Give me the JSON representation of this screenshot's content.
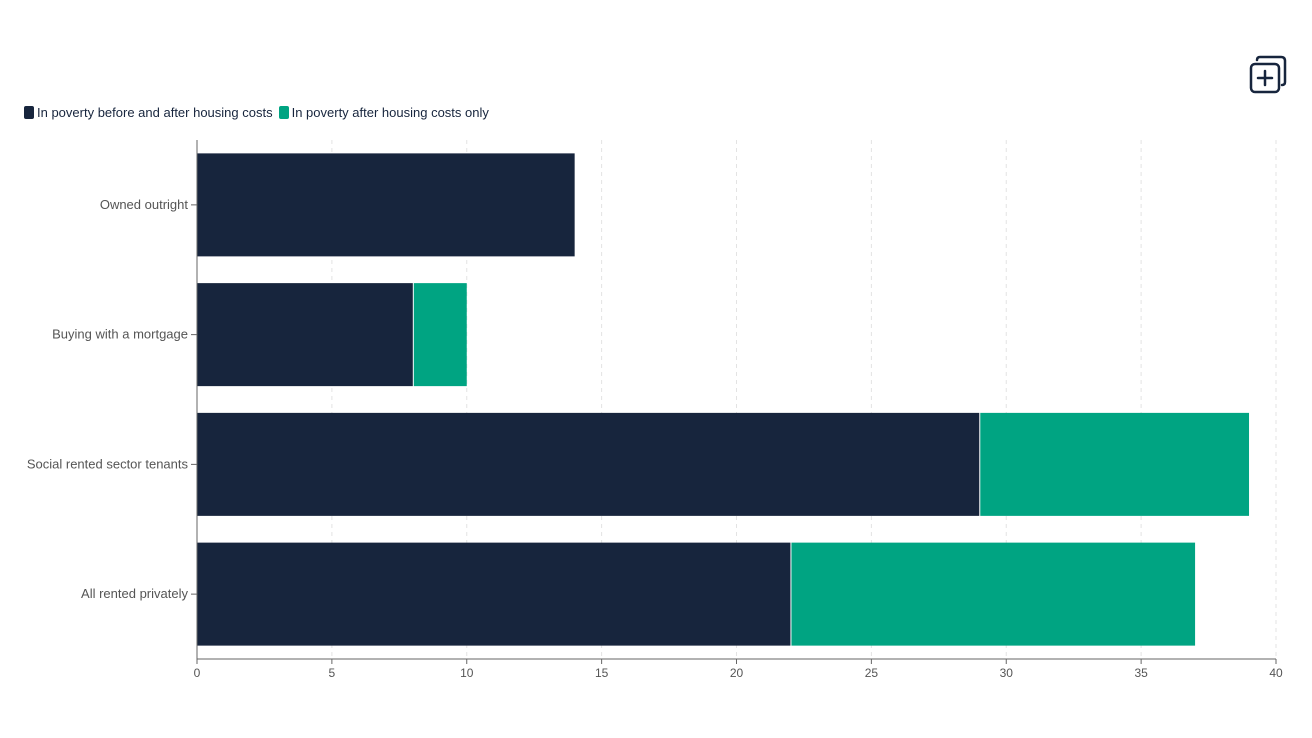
{
  "chart_data": {
    "type": "bar",
    "orientation": "horizontal",
    "stacked": true,
    "title": "",
    "xlabel": "",
    "ylabel": "",
    "categories": [
      "Owned outright",
      "Buying with a mortgage",
      "Social rented sector tenants",
      "All rented privately"
    ],
    "series": [
      {
        "name": "In poverty before and after housing costs",
        "color": "#17253d",
        "values": [
          14,
          8,
          29,
          22
        ]
      },
      {
        "name": "In poverty after housing costs only",
        "color": "#00a482",
        "values": [
          0,
          2,
          10,
          15
        ]
      }
    ],
    "xlim": [
      0,
      40
    ],
    "xticks": [
      0,
      5,
      10,
      15,
      20,
      25,
      30,
      35,
      40
    ],
    "grid": true,
    "legend_position": "top-left"
  },
  "toolbar": {
    "add_icon": "add-to-collection-icon"
  }
}
